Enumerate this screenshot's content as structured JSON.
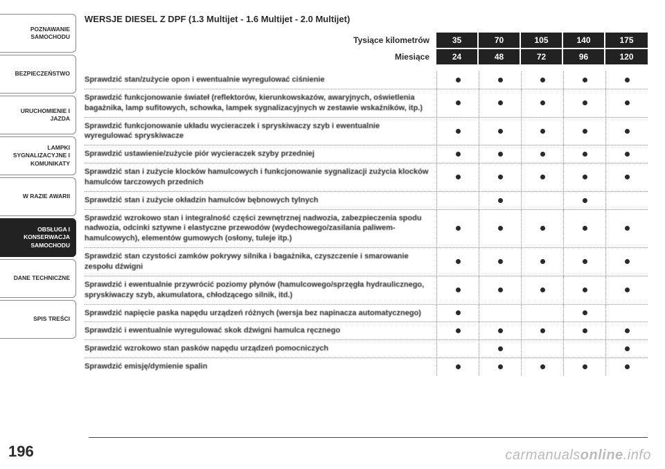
{
  "colors": {
    "dark": "#222222",
    "text": "#2a2a2a",
    "dotted": "#999999",
    "watermark": "#bbbbbb"
  },
  "sidebar": {
    "tabs": [
      {
        "label": "POZNAWANIE SAMOCHODU",
        "active": false
      },
      {
        "label": "BEZPIECZEŃSTWO",
        "active": false
      },
      {
        "label": "URUCHOMIENIE I JAZDA",
        "active": false
      },
      {
        "label": "LAMPKI SYGNALIZACYJNE I KOMUNIKATY",
        "active": false
      },
      {
        "label": "W RAZIE AWARII",
        "active": false
      },
      {
        "label": "OBSŁUGA I KONSERWACJA SAMOCHODU",
        "active": true
      },
      {
        "label": "DANE TECHNICZNE",
        "active": false
      },
      {
        "label": "SPIS TREŚCI",
        "active": false
      }
    ]
  },
  "title": "WERSJE DIESEL Z DPF (1.3 Multijet - 1.6 Multijet - 2.0 Multijet)",
  "headers": [
    {
      "label": "Tysiące kilometrów",
      "values": [
        "35",
        "70",
        "105",
        "140",
        "175"
      ]
    },
    {
      "label": "Miesiące",
      "values": [
        "24",
        "48",
        "72",
        "96",
        "120"
      ]
    }
  ],
  "rows": [
    {
      "label": "Sprawdzić stan/zużycie opon i ewentualnie wyregulować ciśnienie",
      "dots": [
        1,
        1,
        1,
        1,
        1
      ]
    },
    {
      "label": "Sprawdzić funkcjonowanie świateł (reflektorów, kierunkowskazów, awaryjnych, oświetlenia bagażnika, lamp sufitowych, schowka, lampek sygnalizacyjnych w zestawie wskaźników, itp.)",
      "dots": [
        1,
        1,
        1,
        1,
        1
      ]
    },
    {
      "label": "Sprawdzić funkcjonowanie układu wycieraczek i spryskiwaczy szyb i ewentualnie wyregulować spryskiwacze",
      "dots": [
        1,
        1,
        1,
        1,
        1
      ]
    },
    {
      "label": "Sprawdzić ustawienie/zużycie piór wycieraczek szyby przedniej",
      "dots": [
        1,
        1,
        1,
        1,
        1
      ]
    },
    {
      "label": "Sprawdzić stan i zużycie klocków hamulcowych i funkcjonowanie sygnalizacji zużycia klocków hamulców tarczowych przednich",
      "dots": [
        1,
        1,
        1,
        1,
        1
      ]
    },
    {
      "label": "Sprawdzić stan i zużycie okładzin hamulców bębnowych tylnych",
      "dots": [
        0,
        1,
        0,
        1,
        0
      ]
    },
    {
      "label": "Sprawdzić wzrokowo stan i integralność części zewnętrznej nadwozia, zabezpieczenia spodu nadwozia, odcinki sztywne i elastyczne przewodów (wydechowego/zasilania paliwem-hamulcowych), elementów gumowych (osłony, tuleje itp.)",
      "dots": [
        1,
        1,
        1,
        1,
        1
      ]
    },
    {
      "label": "Sprawdzić stan czystości zamków pokrywy silnika i bagażnika, czyszczenie i smarowanie zespołu dźwigni",
      "dots": [
        1,
        1,
        1,
        1,
        1
      ]
    },
    {
      "label": "Sprawdzić i ewentualnie przywrócić poziomy płynów (hamulcowego/sprzęgła hydraulicznego, spryskiwaczy szyb, akumulatora, chłodzącego silnik, itd.)",
      "dots": [
        1,
        1,
        1,
        1,
        1
      ]
    },
    {
      "label": "Sprawdzić napięcie paska napędu urządzeń różnych (wersja bez napinacza automatycznego)",
      "dots": [
        1,
        0,
        0,
        1,
        0
      ]
    },
    {
      "label": "Sprawdzić i ewentualnie wyregulować skok dźwigni hamulca ręcznego",
      "dots": [
        1,
        1,
        1,
        1,
        1
      ]
    },
    {
      "label": "Sprawdzić wzrokowo stan pasków napędu urządzeń pomocniczych",
      "dots": [
        0,
        1,
        0,
        0,
        1
      ]
    },
    {
      "label": "Sprawdzić emisję/dymienie spalin",
      "dots": [
        1,
        1,
        1,
        1,
        1
      ]
    }
  ],
  "page_number": "196",
  "watermark": {
    "a": "carmanuals",
    "b": "online",
    "c": ".info"
  }
}
